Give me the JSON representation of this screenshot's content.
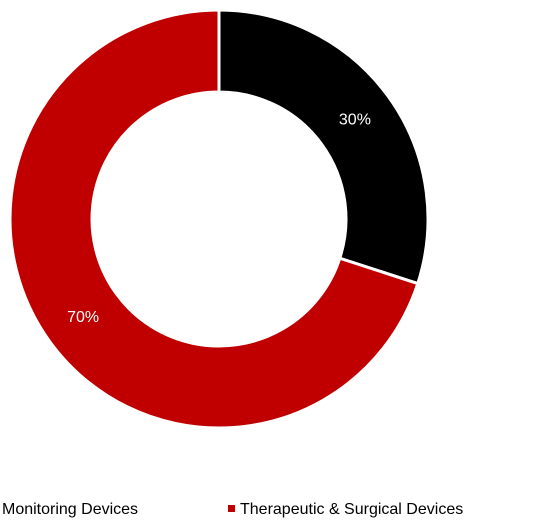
{
  "chart_data": {
    "type": "pie",
    "categories": [
      "Monitoring Devices",
      "Therapeutic & Surgical Devices"
    ],
    "values": [
      30,
      70
    ],
    "value_labels": [
      "30%",
      "70%"
    ],
    "colors": [
      "#000000",
      "#c00000"
    ],
    "legend": "bottom"
  }
}
